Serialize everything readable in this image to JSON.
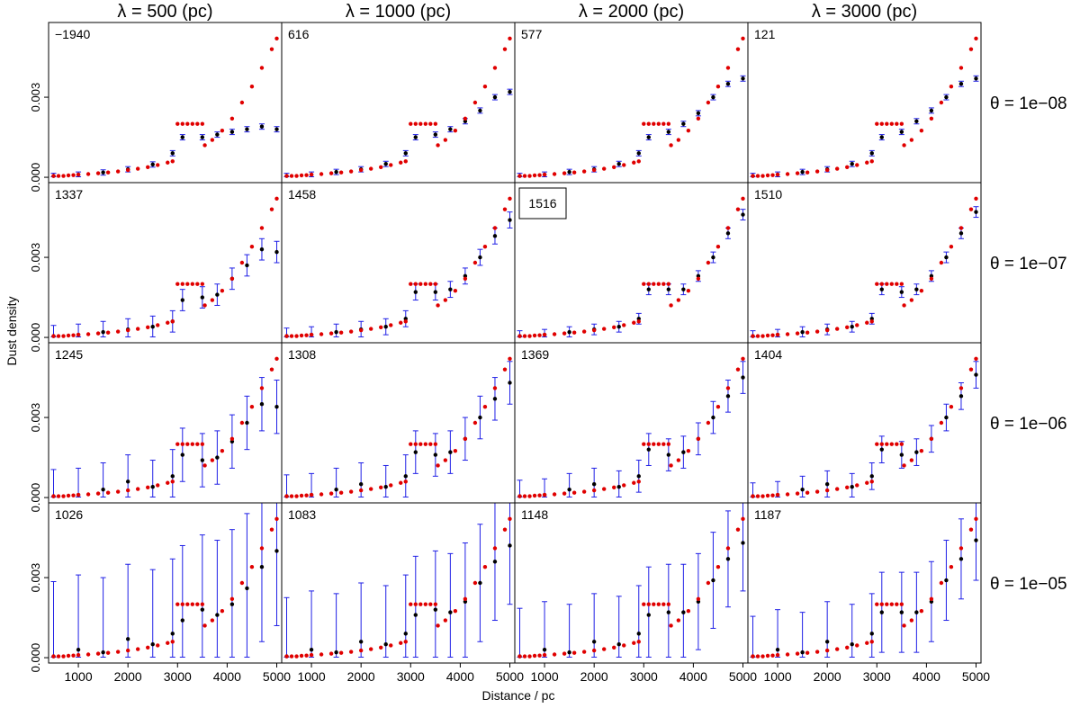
{
  "chart_data": {
    "type": "scatter",
    "layout": "4x4 panel grid",
    "xlabel": "Distance / pc",
    "ylabel": "Dust density",
    "column_headers": [
      "λ = 500 (pc)",
      "λ = 1000 (pc)",
      "λ = 2000 (pc)",
      "λ = 3000 (pc)"
    ],
    "row_headers": [
      "θ = 1e−08",
      "θ = 1e−07",
      "θ = 1e−06",
      "θ = 1e−05"
    ],
    "xlim": [
      400,
      5100
    ],
    "ylim": [
      -0.0002,
      0.0058
    ],
    "x_ticks": [
      1000,
      2000,
      3000,
      4000,
      5000
    ],
    "x_tick_labels": [
      "1000",
      "2000",
      "3000",
      "4000",
      "5000"
    ],
    "y_ticks": [
      0.0,
      0.003
    ],
    "y_tick_labels": [
      "0.000",
      "0.003"
    ],
    "panel_values": [
      [
        "−1940",
        "616",
        "577",
        "121"
      ],
      [
        "1337",
        "1458",
        "1516",
        "1510"
      ],
      [
        "1245",
        "1308",
        "1369",
        "1404"
      ],
      [
        "1026",
        "1083",
        "1148",
        "1187"
      ]
    ],
    "boxed_panel": [
      1,
      2
    ],
    "colors": {
      "estimate": "#000000",
      "error_bar": "#1f1fe6",
      "true_density": "#e00000"
    },
    "true_density": [
      [
        500,
        5e-05
      ],
      [
        600,
        5e-05
      ],
      [
        700,
        5e-05
      ],
      [
        800,
        7e-05
      ],
      [
        900,
        8e-05
      ],
      [
        1000,
        0.0001
      ],
      [
        1200,
        0.00012
      ],
      [
        1400,
        0.00015
      ],
      [
        1600,
        0.00018
      ],
      [
        1800,
        0.00022
      ],
      [
        2000,
        0.00027
      ],
      [
        2200,
        0.00032
      ],
      [
        2400,
        0.00038
      ],
      [
        2600,
        0.00046
      ],
      [
        2800,
        0.00055
      ],
      [
        2900,
        0.0006
      ],
      [
        3000,
        0.002
      ],
      [
        3100,
        0.002
      ],
      [
        3200,
        0.002
      ],
      [
        3300,
        0.002
      ],
      [
        3400,
        0.002
      ],
      [
        3500,
        0.002
      ],
      [
        3550,
        0.0012
      ],
      [
        3700,
        0.0014
      ],
      [
        3900,
        0.00175
      ],
      [
        4100,
        0.0022
      ],
      [
        4300,
        0.0028
      ],
      [
        4500,
        0.0034
      ],
      [
        4700,
        0.0041
      ],
      [
        4900,
        0.0048
      ],
      [
        5000,
        0.0052
      ]
    ],
    "estimates": [
      [
        {
          "x": [
            500,
            1000,
            1500,
            2000,
            2500,
            2900,
            3100,
            3500,
            3800,
            4100,
            4400,
            4700,
            5000
          ],
          "y": [
            5e-05,
            0.0001,
            0.00018,
            0.0003,
            0.00048,
            0.0009,
            0.0015,
            0.0015,
            0.0016,
            0.0017,
            0.0018,
            0.0019,
            0.0018
          ],
          "err": 0.0001
        },
        {
          "x": [
            500,
            1000,
            1500,
            2000,
            2500,
            2900,
            3100,
            3500,
            3800,
            4100,
            4400,
            4700,
            5000
          ],
          "y": [
            5e-05,
            0.0001,
            0.0002,
            0.0003,
            0.0005,
            0.0009,
            0.0015,
            0.0016,
            0.0018,
            0.0021,
            0.0025,
            0.003,
            0.0032
          ],
          "err": 0.0001
        },
        {
          "x": [
            500,
            1000,
            1500,
            2000,
            2500,
            2900,
            3100,
            3500,
            3800,
            4100,
            4400,
            4700,
            5000
          ],
          "y": [
            5e-05,
            0.0001,
            0.0002,
            0.0003,
            0.0005,
            0.0009,
            0.0015,
            0.0017,
            0.002,
            0.0024,
            0.003,
            0.0035,
            0.0037
          ],
          "err": 0.0001
        },
        {
          "x": [
            500,
            1000,
            1500,
            2000,
            2500,
            2900,
            3100,
            3500,
            3800,
            4100,
            4400,
            4700,
            5000
          ],
          "y": [
            5e-05,
            0.0001,
            0.0002,
            0.0003,
            0.0005,
            0.0009,
            0.0015,
            0.0017,
            0.0021,
            0.0025,
            0.003,
            0.0035,
            0.0037
          ],
          "err": 0.0001
        }
      ],
      [
        {
          "x": [
            500,
            1000,
            1500,
            2000,
            2500,
            2900,
            3100,
            3500,
            3800,
            4100,
            4400,
            4700,
            5000
          ],
          "y": [
            5e-05,
            0.0001,
            0.0002,
            0.0003,
            0.0004,
            0.0006,
            0.0014,
            0.0015,
            0.0016,
            0.0022,
            0.0027,
            0.0033,
            0.0032
          ],
          "err": 0.0004
        },
        {
          "x": [
            500,
            1000,
            1500,
            2000,
            2500,
            2900,
            3100,
            3500,
            3800,
            4100,
            4400,
            4700,
            5000
          ],
          "y": [
            5e-05,
            0.0001,
            0.0002,
            0.0003,
            0.0004,
            0.0007,
            0.0017,
            0.0017,
            0.0018,
            0.0023,
            0.003,
            0.0038,
            0.0044
          ],
          "err": 0.0003
        },
        {
          "x": [
            500,
            1000,
            1500,
            2000,
            2500,
            2900,
            3100,
            3500,
            3800,
            4100,
            4400,
            4700,
            5000
          ],
          "y": [
            5e-05,
            0.0001,
            0.0002,
            0.0003,
            0.0004,
            0.0007,
            0.0018,
            0.0018,
            0.0018,
            0.0023,
            0.003,
            0.0039,
            0.0046
          ],
          "err": 0.0002
        },
        {
          "x": [
            500,
            1000,
            1500,
            2000,
            2500,
            2900,
            3100,
            3500,
            3800,
            4100,
            4400,
            4700,
            5000
          ],
          "y": [
            5e-05,
            0.0001,
            0.0002,
            0.0003,
            0.0004,
            0.0007,
            0.0018,
            0.0017,
            0.0018,
            0.0023,
            0.003,
            0.0039,
            0.0047
          ],
          "err": 0.0002
        }
      ],
      [
        {
          "x": [
            500,
            1000,
            1500,
            2000,
            2500,
            2900,
            3100,
            3500,
            3800,
            4100,
            4400,
            4700,
            5000
          ],
          "y": [
            5e-05,
            0.0001,
            0.0003,
            0.0006,
            0.0004,
            0.0008,
            0.0016,
            0.0014,
            0.0015,
            0.0021,
            0.0028,
            0.0035,
            0.0034
          ],
          "err": 0.001
        },
        {
          "x": [
            500,
            1000,
            1500,
            2000,
            2500,
            2900,
            3100,
            3500,
            3800,
            4100,
            4400,
            4700,
            5000
          ],
          "y": [
            5e-05,
            0.0001,
            0.0003,
            0.0005,
            0.0004,
            0.0008,
            0.0017,
            0.0016,
            0.0017,
            0.0022,
            0.003,
            0.0037,
            0.0043
          ],
          "err": 0.0008
        },
        {
          "x": [
            500,
            1000,
            1500,
            2000,
            2500,
            2900,
            3100,
            3500,
            3800,
            4100,
            4400,
            4700,
            5000
          ],
          "y": [
            5e-05,
            0.0001,
            0.0003,
            0.0005,
            0.0004,
            0.0008,
            0.0018,
            0.0016,
            0.0017,
            0.0022,
            0.003,
            0.0038,
            0.0045
          ],
          "err": 0.0006
        },
        {
          "x": [
            500,
            1000,
            1500,
            2000,
            2500,
            2900,
            3100,
            3500,
            3800,
            4100,
            4400,
            4700,
            5000
          ],
          "y": [
            5e-05,
            0.0001,
            0.0003,
            0.0005,
            0.0004,
            0.0008,
            0.0018,
            0.0016,
            0.0017,
            0.0022,
            0.003,
            0.0038,
            0.0046
          ],
          "err": 0.0005
        }
      ],
      [
        {
          "x": [
            500,
            1000,
            1500,
            2000,
            2500,
            2900,
            3100,
            3500,
            3800,
            4100,
            4400,
            4700,
            5000
          ],
          "y": [
            5e-05,
            0.0003,
            0.0002,
            0.0007,
            0.0005,
            0.0009,
            0.0014,
            0.0018,
            0.0016,
            0.002,
            0.0026,
            0.0034,
            0.004
          ],
          "err": 0.0028
        },
        {
          "x": [
            500,
            1000,
            1500,
            2000,
            2500,
            2900,
            3100,
            3500,
            3800,
            4100,
            4400,
            4700,
            5000
          ],
          "y": [
            5e-05,
            0.0003,
            0.0002,
            0.0006,
            0.0005,
            0.0009,
            0.0016,
            0.0018,
            0.0017,
            0.0021,
            0.0028,
            0.0036,
            0.0042
          ],
          "err": 0.0022
        },
        {
          "x": [
            500,
            1000,
            1500,
            2000,
            2500,
            2900,
            3100,
            3500,
            3800,
            4100,
            4400,
            4700,
            5000
          ],
          "y": [
            5e-05,
            0.0003,
            0.0002,
            0.0006,
            0.0005,
            0.0009,
            0.0016,
            0.0017,
            0.0017,
            0.0021,
            0.0029,
            0.0037,
            0.0043
          ],
          "err": 0.0018
        },
        {
          "x": [
            500,
            1000,
            1500,
            2000,
            2500,
            2900,
            3100,
            3500,
            3800,
            4100,
            4400,
            4700,
            5000
          ],
          "y": [
            5e-05,
            0.0003,
            0.0002,
            0.0006,
            0.0005,
            0.0009,
            0.0017,
            0.0017,
            0.0017,
            0.0021,
            0.0029,
            0.0037,
            0.0044
          ],
          "err": 0.0015
        }
      ]
    ]
  }
}
